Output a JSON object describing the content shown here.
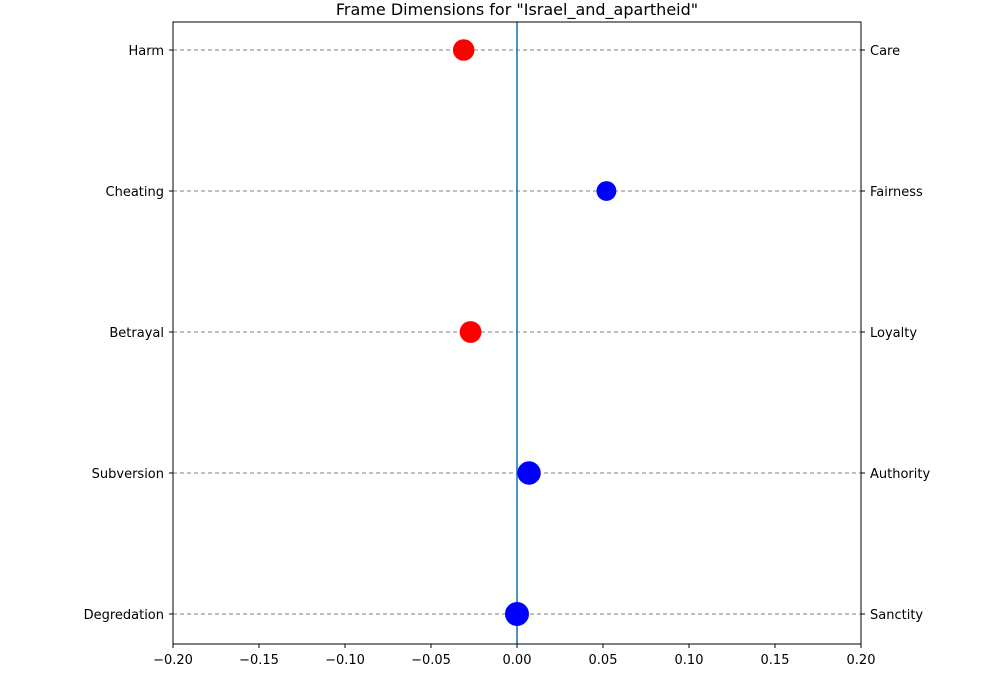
{
  "chart_data": {
    "type": "scatter",
    "title": "Frame Dimensions for \"Israel_and_apartheid\"",
    "xlabel": "",
    "ylabel": "",
    "xlim": [
      -0.2,
      0.2
    ],
    "x_ticks": [
      "−0.20",
      "−0.15",
      "−0.10",
      "−0.05",
      "0.00",
      "0.05",
      "0.10",
      "0.15",
      "0.20"
    ],
    "x_tick_values": [
      -0.2,
      -0.15,
      -0.1,
      -0.05,
      0.0,
      0.05,
      0.1,
      0.15,
      0.2
    ],
    "grid": "horizontal dashed",
    "zero_line": 0.0,
    "dimensions": [
      {
        "left": "Harm",
        "right": "Care",
        "value": -0.031,
        "color": "#ff0000"
      },
      {
        "left": "Cheating",
        "right": "Fairness",
        "value": 0.052,
        "color": "#0000ff"
      },
      {
        "left": "Betrayal",
        "right": "Loyalty",
        "value": -0.027,
        "color": "#ff0000"
      },
      {
        "left": "Subversion",
        "right": "Authority",
        "value": 0.007,
        "color": "#0000ff"
      },
      {
        "left": "Degredation",
        "right": "Sanctity",
        "value": 0.0,
        "color": "#0000ff"
      }
    ]
  }
}
